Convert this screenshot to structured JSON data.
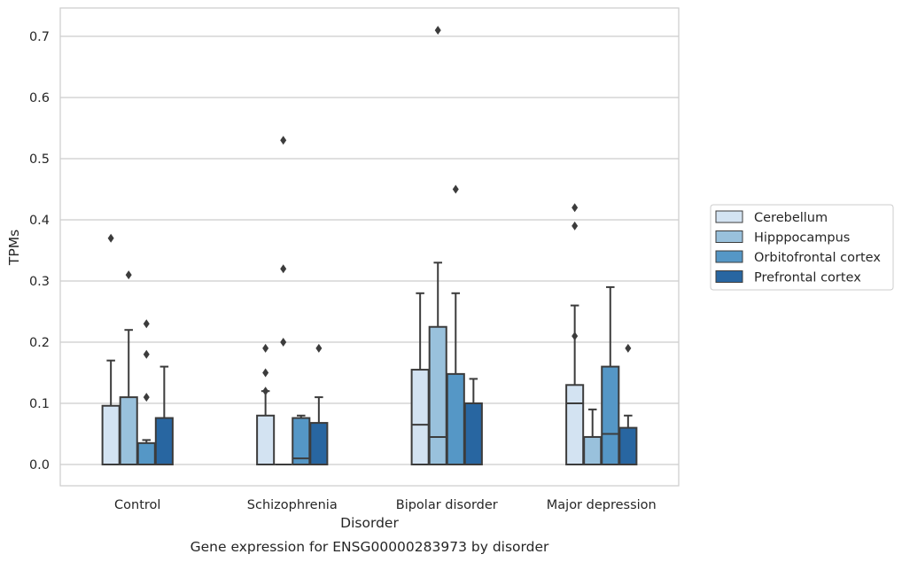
{
  "chart_data": {
    "type": "box",
    "title": "Gene expression for ENSG00000283973 by disorder",
    "xlabel": "Disorder",
    "ylabel": "TPMs",
    "ylim": [
      -0.035,
      0.745
    ],
    "yticks": [
      "0.0",
      "0.1",
      "0.2",
      "0.3",
      "0.4",
      "0.5",
      "0.6",
      "0.7"
    ],
    "grid": true,
    "legend_position": "right",
    "categories": [
      "Control",
      "Schizophrenia",
      "Bipolar disorder",
      "Major depression"
    ],
    "series": [
      {
        "name": "Cerebellum",
        "color": "#d3e3f2",
        "boxes": [
          {
            "min": 0.0,
            "q1": 0.0,
            "median": 0.0,
            "q3": 0.096,
            "max": 0.17,
            "outliers": [
              0.37
            ]
          },
          {
            "min": 0.0,
            "q1": 0.0,
            "median": 0.0,
            "q3": 0.08,
            "max": 0.12,
            "outliers": [
              0.12,
              0.15,
              0.19
            ]
          },
          {
            "min": 0.0,
            "q1": 0.0,
            "median": 0.065,
            "q3": 0.155,
            "max": 0.28,
            "outliers": []
          },
          {
            "min": 0.0,
            "q1": 0.0,
            "median": 0.1,
            "q3": 0.13,
            "max": 0.26,
            "outliers": [
              0.42,
              0.39,
              0.21
            ]
          }
        ]
      },
      {
        "name": "Hipppocampus",
        "color": "#99c1dc",
        "boxes": [
          {
            "min": 0.0,
            "q1": 0.0,
            "median": 0.0,
            "q3": 0.11,
            "max": 0.22,
            "outliers": [
              0.31
            ]
          },
          {
            "min": 0.0,
            "q1": 0.0,
            "median": 0.0,
            "q3": 0.0,
            "max": 0.0,
            "outliers": [
              0.53,
              0.32,
              0.2
            ]
          },
          {
            "min": 0.0,
            "q1": 0.0,
            "median": 0.045,
            "q3": 0.225,
            "max": 0.33,
            "outliers": [
              0.71
            ]
          },
          {
            "min": 0.0,
            "q1": 0.0,
            "median": 0.0,
            "q3": 0.045,
            "max": 0.09,
            "outliers": []
          }
        ]
      },
      {
        "name": "Orbitofrontal cortex",
        "color": "#5597c6",
        "boxes": [
          {
            "min": 0.0,
            "q1": 0.0,
            "median": 0.0,
            "q3": 0.035,
            "max": 0.04,
            "outliers": [
              0.23,
              0.18,
              0.11
            ]
          },
          {
            "min": 0.0,
            "q1": 0.0,
            "median": 0.01,
            "q3": 0.076,
            "max": 0.08,
            "outliers": []
          },
          {
            "min": 0.0,
            "q1": 0.0,
            "median": 0.0,
            "q3": 0.148,
            "max": 0.28,
            "outliers": [
              0.45
            ]
          },
          {
            "min": 0.0,
            "q1": 0.0,
            "median": 0.05,
            "q3": 0.16,
            "max": 0.29,
            "outliers": []
          }
        ]
      },
      {
        "name": "Prefrontal cortex",
        "color": "#2866a1",
        "boxes": [
          {
            "min": 0.0,
            "q1": 0.0,
            "median": 0.0,
            "q3": 0.076,
            "max": 0.16,
            "outliers": []
          },
          {
            "min": 0.0,
            "q1": 0.0,
            "median": 0.0,
            "q3": 0.068,
            "max": 0.11,
            "outliers": [
              0.19
            ]
          },
          {
            "min": 0.0,
            "q1": 0.0,
            "median": 0.0,
            "q3": 0.1,
            "max": 0.14,
            "outliers": []
          },
          {
            "min": 0.0,
            "q1": 0.0,
            "median": 0.0,
            "q3": 0.06,
            "max": 0.08,
            "outliers": [
              0.19
            ]
          }
        ]
      }
    ]
  }
}
